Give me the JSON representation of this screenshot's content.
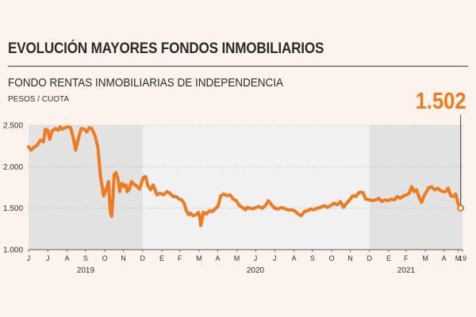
{
  "header": {
    "title": "EVOLUCIÓN MAYORES FONDOS INMOBILIARIOS",
    "subtitle": "FONDO RENTAS INMOBILIARIAS DE INDEPENDENCIA",
    "unit": "PESOS / CUOTA",
    "last_value_label": "1.502"
  },
  "chart_data": {
    "type": "line",
    "title": "FONDO RENTAS INMOBILIARIAS DE INDEPENDENCIA",
    "ylabel": "PESOS / CUOTA",
    "xlabel": "",
    "ylim": [
      1000,
      2500
    ],
    "yticks": [
      {
        "value": 1000,
        "label": "1.000"
      },
      {
        "value": 1500,
        "label": "1.500"
      },
      {
        "value": 2000,
        "label": "2.000"
      },
      {
        "value": 2500,
        "label": "2.500"
      }
    ],
    "xlim": [
      "2019-07-01",
      "2021-05-31"
    ],
    "month_ticks": [
      {
        "date": "2019-07-01",
        "label": "J"
      },
      {
        "date": "2019-08-01",
        "label": "J"
      },
      {
        "date": "2019-09-01",
        "label": "A"
      },
      {
        "date": "2019-10-01",
        "label": "S"
      },
      {
        "date": "2019-11-01",
        "label": "O"
      },
      {
        "date": "2019-12-01",
        "label": "N"
      },
      {
        "date": "2020-01-01",
        "label": "D"
      },
      {
        "date": "2020-02-01",
        "label": "E"
      },
      {
        "date": "2020-03-01",
        "label": "F"
      },
      {
        "date": "2020-04-01",
        "label": "M"
      },
      {
        "date": "2020-05-01",
        "label": "A"
      },
      {
        "date": "2020-06-01",
        "label": "M"
      },
      {
        "date": "2020-07-01",
        "label": "J"
      },
      {
        "date": "2020-08-01",
        "label": "J"
      },
      {
        "date": "2020-09-01",
        "label": "A"
      },
      {
        "date": "2020-10-01",
        "label": "S"
      },
      {
        "date": "2020-11-01",
        "label": "O"
      },
      {
        "date": "2020-12-01",
        "label": "N"
      },
      {
        "date": "2021-01-01",
        "label": "D"
      },
      {
        "date": "2021-02-01",
        "label": "E"
      },
      {
        "date": "2021-03-01",
        "label": "F"
      },
      {
        "date": "2021-04-01",
        "label": "M"
      },
      {
        "date": "2021-05-01",
        "label": "A"
      },
      {
        "date": "2021-05-24",
        "label": "M"
      },
      {
        "date": "2021-05-31",
        "label": "19"
      }
    ],
    "year_labels": [
      {
        "date": "2019-10-01",
        "label": "2019"
      },
      {
        "date": "2020-07-01",
        "label": "2020"
      },
      {
        "date": "2021-03-01",
        "label": "2021"
      }
    ],
    "year_shading": [
      {
        "from": "2019-07-01",
        "to": "2020-01-01",
        "color": "#e2e2e2"
      },
      {
        "from": "2020-01-01",
        "to": "2021-01-01",
        "color": "#f1f1f1"
      },
      {
        "from": "2021-01-01",
        "to": "2021-05-31",
        "color": "#e2e2e2"
      }
    ],
    "grid": true,
    "line_color": "#f07a1c",
    "series": [
      {
        "name": "",
        "x": [
          "2019-07-01",
          "2019-07-05",
          "2019-07-09",
          "2019-07-15",
          "2019-07-20",
          "2019-07-25",
          "2019-07-28",
          "2019-08-01",
          "2019-08-04",
          "2019-08-08",
          "2019-08-13",
          "2019-08-18",
          "2019-08-21",
          "2019-08-24",
          "2019-08-29",
          "2019-09-02",
          "2019-09-07",
          "2019-09-11",
          "2019-09-15",
          "2019-09-19",
          "2019-09-24",
          "2019-09-29",
          "2019-10-01",
          "2019-10-03",
          "2019-10-07",
          "2019-10-11",
          "2019-10-16",
          "2019-10-21",
          "2019-10-25",
          "2019-10-30",
          "2019-11-02",
          "2019-11-07",
          "2019-11-10",
          "2019-11-12",
          "2019-11-14",
          "2019-11-16",
          "2019-11-19",
          "2019-11-22",
          "2019-11-25",
          "2019-11-27",
          "2019-11-29",
          "2019-12-02",
          "2019-12-05",
          "2019-12-07",
          "2019-12-10",
          "2019-12-14",
          "2019-12-18",
          "2019-12-22",
          "2019-12-27",
          "2020-01-02",
          "2020-01-06",
          "2020-01-09",
          "2020-01-14",
          "2020-01-18",
          "2020-01-24",
          "2020-01-29",
          "2020-02-04",
          "2020-02-09",
          "2020-02-14",
          "2020-02-19",
          "2020-02-24",
          "2020-02-29",
          "2020-03-04",
          "2020-03-08",
          "2020-03-11",
          "2020-03-15",
          "2020-03-18",
          "2020-03-22",
          "2020-03-27",
          "2020-03-31",
          "2020-04-02",
          "2020-04-04",
          "2020-04-08",
          "2020-04-13",
          "2020-04-18",
          "2020-04-23",
          "2020-04-27",
          "2020-05-02",
          "2020-05-06",
          "2020-05-11",
          "2020-05-16",
          "2020-05-21",
          "2020-05-26",
          "2020-05-31",
          "2020-06-05",
          "2020-06-10",
          "2020-06-15",
          "2020-06-18",
          "2020-06-22",
          "2020-06-27",
          "2020-07-02",
          "2020-07-07",
          "2020-07-12",
          "2020-07-17",
          "2020-07-22",
          "2020-07-27",
          "2020-08-01",
          "2020-08-07",
          "2020-08-12",
          "2020-08-18",
          "2020-08-23",
          "2020-08-28",
          "2020-09-02",
          "2020-09-08",
          "2020-09-13",
          "2020-09-18",
          "2020-09-23",
          "2020-09-28",
          "2020-10-03",
          "2020-10-09",
          "2020-10-14",
          "2020-10-20",
          "2020-10-25",
          "2020-10-30",
          "2020-11-05",
          "2020-11-10",
          "2020-11-15",
          "2020-11-20",
          "2020-11-25",
          "2020-11-30",
          "2020-12-05",
          "2020-12-10",
          "2020-12-15",
          "2020-12-21",
          "2020-12-26",
          "2021-01-01",
          "2021-01-06",
          "2021-01-11",
          "2021-01-16",
          "2021-01-21",
          "2021-01-26",
          "2021-01-31",
          "2021-02-05",
          "2021-02-10",
          "2021-02-15",
          "2021-02-20",
          "2021-02-25",
          "2021-03-02",
          "2021-03-06",
          "2021-03-10",
          "2021-03-14",
          "2021-03-18",
          "2021-03-22",
          "2021-03-26",
          "2021-03-30",
          "2021-04-03",
          "2021-04-07",
          "2021-04-11",
          "2021-04-16",
          "2021-04-21",
          "2021-04-26",
          "2021-04-30",
          "2021-05-04",
          "2021-05-08",
          "2021-05-12",
          "2021-05-16",
          "2021-05-20",
          "2021-05-24",
          "2021-05-28"
        ],
        "values": [
          2240,
          2200,
          2230,
          2260,
          2320,
          2300,
          2450,
          2440,
          2330,
          2430,
          2460,
          2440,
          2480,
          2450,
          2470,
          2480,
          2470,
          2350,
          2200,
          2330,
          2460,
          2450,
          2440,
          2420,
          2470,
          2460,
          2380,
          2230,
          1890,
          1650,
          1700,
          1820,
          1450,
          1400,
          1600,
          1900,
          1930,
          1860,
          1700,
          1790,
          1800,
          1760,
          1780,
          1700,
          1720,
          1820,
          1790,
          1770,
          1730,
          1870,
          1880,
          1780,
          1720,
          1780,
          1660,
          1680,
          1660,
          1700,
          1680,
          1640,
          1640,
          1610,
          1600,
          1560,
          1480,
          1420,
          1440,
          1410,
          1420,
          1450,
          1400,
          1290,
          1450,
          1430,
          1470,
          1460,
          1490,
          1530,
          1650,
          1670,
          1650,
          1660,
          1610,
          1590,
          1530,
          1510,
          1480,
          1510,
          1500,
          1490,
          1510,
          1520,
          1500,
          1530,
          1590,
          1540,
          1500,
          1490,
          1510,
          1490,
          1480,
          1480,
          1470,
          1430,
          1410,
          1460,
          1470,
          1490,
          1480,
          1500,
          1510,
          1530,
          1510,
          1530,
          1560,
          1540,
          1580,
          1510,
          1560,
          1600,
          1650,
          1640,
          1690,
          1690,
          1610,
          1600,
          1590,
          1600,
          1620,
          1580,
          1600,
          1590,
          1610,
          1600,
          1640,
          1620,
          1650,
          1660,
          1680,
          1760,
          1700,
          1720,
          1630,
          1570,
          1650,
          1700,
          1750,
          1760,
          1720,
          1740,
          1710,
          1700,
          1700,
          1740,
          1650,
          1640,
          1670,
          1550,
          1502
        ]
      }
    ]
  }
}
